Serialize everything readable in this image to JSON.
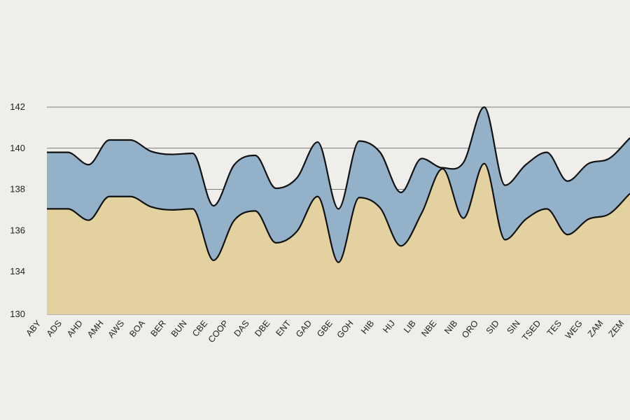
{
  "chart_data": {
    "type": "area",
    "title": "",
    "xlabel": "",
    "ylabel": "",
    "ylim": [
      130,
      142
    ],
    "y_ticks": [
      "142",
      "140",
      "138",
      "136",
      "134",
      "130"
    ],
    "grid": "horizontal",
    "categories": [
      "ABY",
      "ADS",
      "AHD",
      "AMH",
      "AWS",
      "BOA",
      "BER",
      "BUN",
      "CBE",
      "COOP",
      "DAS",
      "DBE",
      "ENT",
      "GAD",
      "GBE",
      "GOH",
      "HIB",
      "HIJ",
      "LIB",
      "NBE",
      "NIB",
      "ORO",
      "SID",
      "SIN",
      "TSED",
      "TES",
      "WEG",
      "ZAM",
      "ZEM"
    ],
    "series": [
      {
        "values": [
          139.8,
          139.8,
          139.2,
          140.4,
          140.4,
          139.85,
          139.7,
          139.75,
          137.2,
          139.2,
          139.65,
          138.05,
          138.55,
          140.3,
          137.05,
          140.35,
          139.8,
          137.85,
          139.5,
          139.05,
          139.3,
          142.0,
          138.2,
          139.2,
          139.8,
          138.4,
          139.25,
          139.5,
          140.5
        ],
        "color": "#93b1c9"
      },
      {
        "values": [
          137.05,
          137.05,
          136.5,
          137.65,
          137.65,
          137.15,
          137.0,
          137.05,
          134.55,
          136.5,
          136.95,
          135.4,
          135.95,
          137.65,
          134.45,
          137.6,
          137.1,
          135.25,
          136.85,
          139.0,
          136.6,
          139.25,
          135.55,
          136.55,
          137.05,
          135.8,
          136.55,
          136.8,
          137.8
        ],
        "color": "#e3d19f"
      }
    ]
  }
}
